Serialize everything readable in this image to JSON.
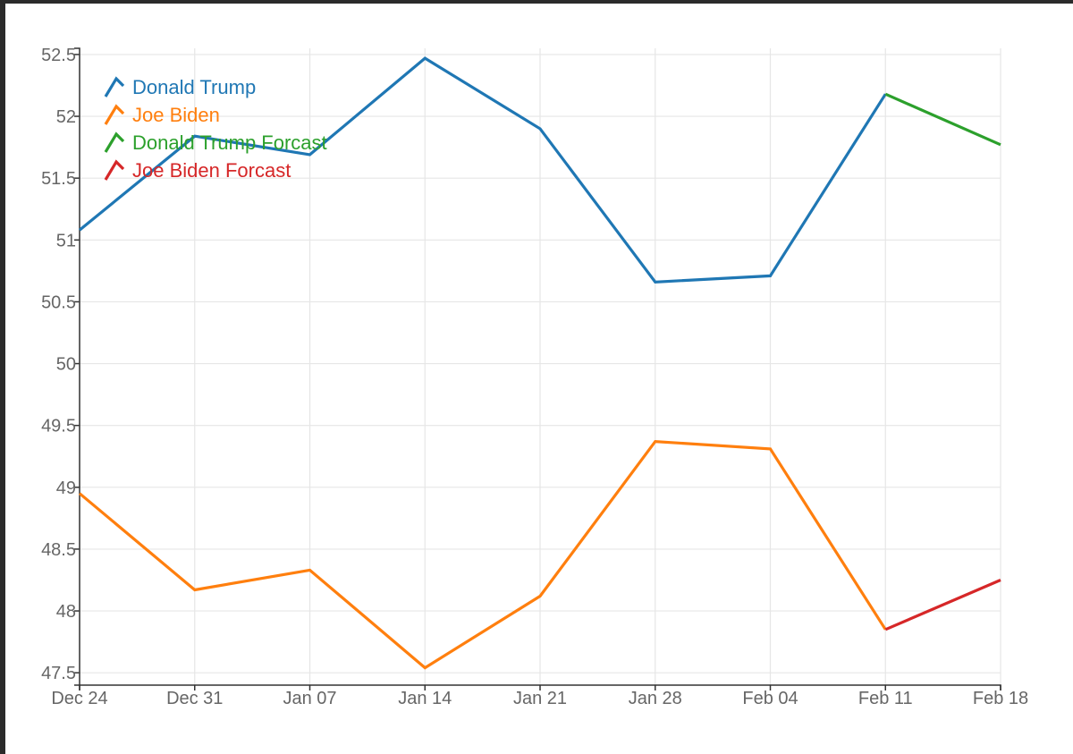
{
  "chart_data": {
    "type": "line",
    "title": "",
    "xlabel": "",
    "ylabel": "",
    "categories": [
      "Dec 24",
      "Dec 31",
      "Jan 07",
      "Jan 14",
      "Jan 21",
      "Jan 28",
      "Feb 04",
      "Feb 11",
      "Feb 18"
    ],
    "ylim": [
      47.4,
      52.55
    ],
    "yticks": [
      47.5,
      48,
      48.5,
      49,
      49.5,
      50,
      50.5,
      51,
      51.5,
      52,
      52.5
    ],
    "ytick_labels": [
      "47.5",
      "48",
      "48.5",
      "49",
      "49.5",
      "50",
      "50.5",
      "51",
      "51.5",
      "52",
      "52.5"
    ],
    "grid": true,
    "legend_position": "top-left",
    "series": [
      {
        "name": "Donald Trump",
        "color": "#1f77b4",
        "values": [
          51.08,
          51.84,
          51.69,
          52.47,
          51.9,
          50.66,
          50.71,
          52.18,
          null
        ]
      },
      {
        "name": "Joe Biden",
        "color": "#ff7f0e",
        "values": [
          48.95,
          48.17,
          48.33,
          47.54,
          48.12,
          49.37,
          49.31,
          47.85,
          null
        ]
      },
      {
        "name": "Donald Trump Forcast",
        "color": "#2ca02c",
        "values": [
          null,
          null,
          null,
          null,
          null,
          null,
          null,
          52.18,
          51.77
        ]
      },
      {
        "name": "Joe Biden Forcast",
        "color": "#d62728",
        "values": [
          null,
          null,
          null,
          null,
          null,
          null,
          null,
          47.85,
          48.25
        ]
      }
    ]
  }
}
